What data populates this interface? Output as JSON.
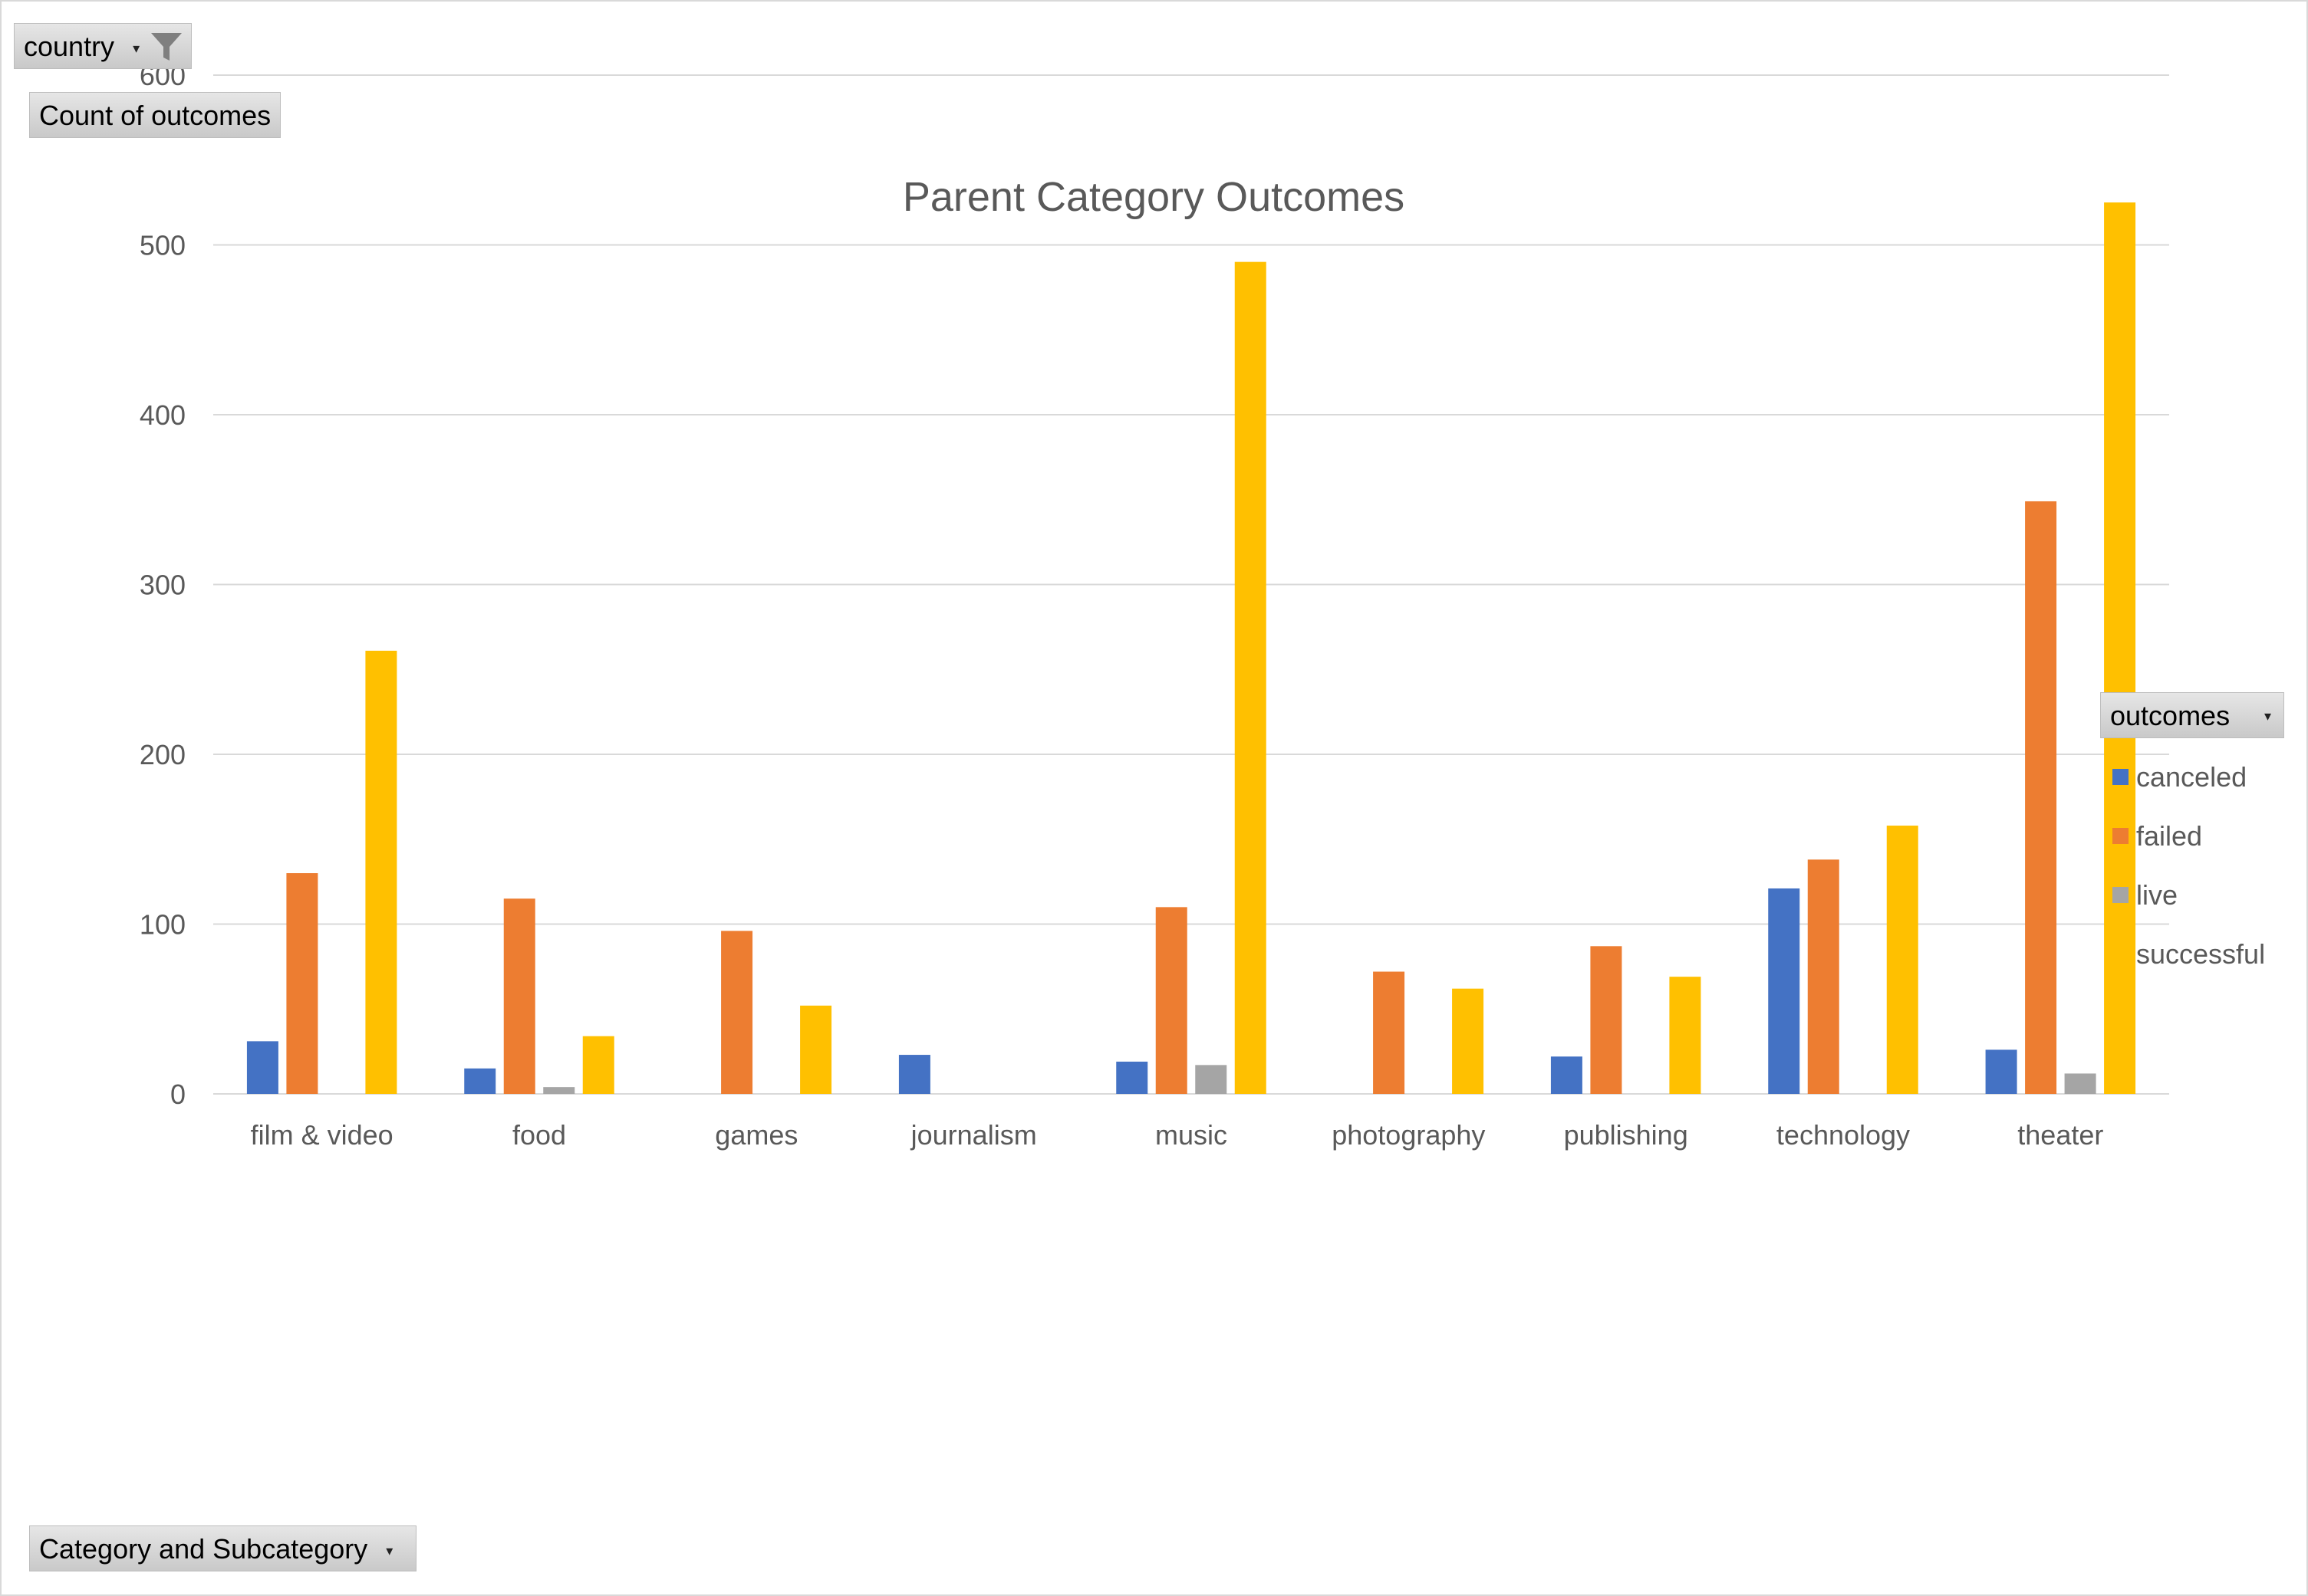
{
  "pivot": {
    "filter_label": "country",
    "values_label": "Count of outcomes",
    "axis_field_label": "Category and Subcategory",
    "legend_field_label": "outcomes",
    "dropdown_glyph": "▾",
    "filter_icon": "funnel-filter-icon"
  },
  "colors": {
    "canceled": "#4472c4",
    "failed": "#ed7d31",
    "live": "#a5a5a5",
    "successful": "#ffc000",
    "gridline": "#d9d9d9",
    "text": "#595959"
  },
  "chart_data": {
    "type": "bar",
    "title": "Parent Category Outcomes",
    "xlabel": "",
    "ylabel": "",
    "ylim": [
      0,
      600
    ],
    "yticks": [
      0,
      100,
      200,
      300,
      400,
      500,
      600
    ],
    "grid": true,
    "legend_position": "right",
    "categories": [
      "film & video",
      "food",
      "games",
      "journalism",
      "music",
      "photography",
      "publishing",
      "technology",
      "theater"
    ],
    "series": [
      {
        "name": "canceled",
        "values": [
          31,
          15,
          null,
          23,
          19,
          null,
          22,
          121,
          26
        ]
      },
      {
        "name": "failed",
        "values": [
          130,
          115,
          96,
          null,
          110,
          72,
          87,
          138,
          349
        ]
      },
      {
        "name": "live",
        "values": [
          null,
          4,
          null,
          null,
          17,
          null,
          null,
          null,
          12
        ]
      },
      {
        "name": "successful",
        "values": [
          261,
          34,
          52,
          null,
          490,
          62,
          69,
          158,
          525
        ]
      }
    ]
  }
}
